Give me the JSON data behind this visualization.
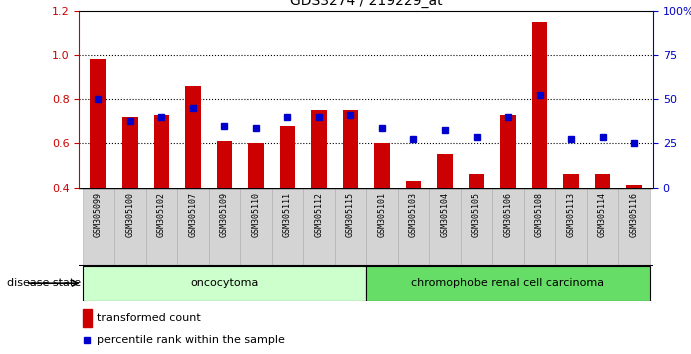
{
  "title": "GDS3274 / 219229_at",
  "samples": [
    "GSM305099",
    "GSM305100",
    "GSM305102",
    "GSM305107",
    "GSM305109",
    "GSM305110",
    "GSM305111",
    "GSM305112",
    "GSM305115",
    "GSM305101",
    "GSM305103",
    "GSM305104",
    "GSM305105",
    "GSM305106",
    "GSM305108",
    "GSM305113",
    "GSM305114",
    "GSM305116"
  ],
  "transformed_count": [
    0.98,
    0.72,
    0.73,
    0.86,
    0.61,
    0.6,
    0.68,
    0.75,
    0.75,
    0.6,
    0.43,
    0.55,
    0.46,
    0.73,
    1.15,
    0.46,
    0.46,
    0.41
  ],
  "percentile_rank": [
    0.8,
    0.7,
    0.72,
    0.76,
    0.68,
    0.67,
    0.72,
    0.72,
    0.73,
    0.67,
    0.62,
    0.66,
    0.63,
    0.72,
    0.82,
    0.62,
    0.63,
    0.6
  ],
  "oncocytoma_count": 9,
  "carcinoma_count": 9,
  "ylim_left": [
    0.4,
    1.2
  ],
  "ylim_right": [
    0,
    100
  ],
  "bar_color": "#cc0000",
  "dot_color": "#0000cc",
  "bar_bottom": 0.4,
  "oncocytoma_color": "#ccffcc",
  "carcinoma_color": "#66dd66",
  "oncocytoma_label": "oncocytoma",
  "carcinoma_label": "chromophobe renal cell carcinoma",
  "legend_bar_label": "transformed count",
  "legend_dot_label": "percentile rank within the sample",
  "disease_state_label": "disease state",
  "left_axis_color": "#cc0000",
  "right_axis_color": "#0000cc",
  "yticks_left": [
    0.4,
    0.6,
    0.8,
    1.0,
    1.2
  ],
  "yticks_right": [
    0,
    25,
    50,
    75,
    100
  ],
  "ytick_labels_right": [
    "0",
    "25",
    "50",
    "75",
    "100%"
  ],
  "grid_values": [
    0.6,
    0.8,
    1.0
  ],
  "tick_bg_color": "#d0d0d0",
  "tick_border_color": "#888888"
}
